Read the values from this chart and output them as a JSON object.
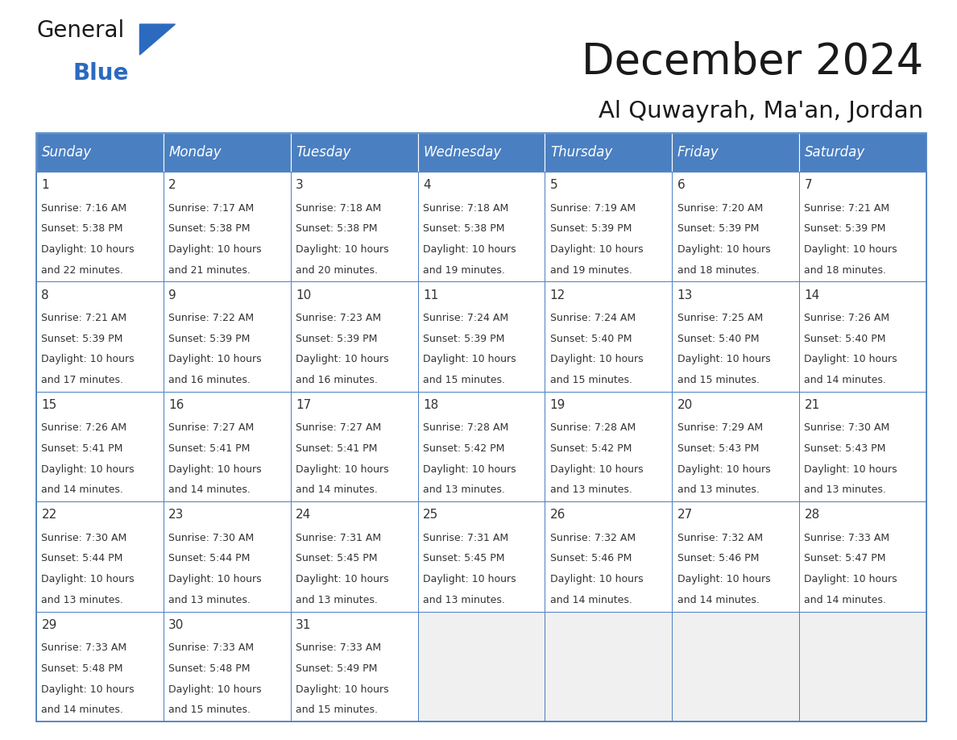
{
  "title": "December 2024",
  "subtitle": "Al Quwayrah, Ma'an, Jordan",
  "header_bg": "#4a7fc1",
  "header_text_color": "#ffffff",
  "row_border_color": "#4a7fc1",
  "cell_border_color": "#cccccc",
  "day_number_color": "#333333",
  "cell_text_color": "#333333",
  "bg_color": "#ffffff",
  "last_row_bg": "#f0f0f0",
  "days_of_week": [
    "Sunday",
    "Monday",
    "Tuesday",
    "Wednesday",
    "Thursday",
    "Friday",
    "Saturday"
  ],
  "calendar_data": [
    [
      {
        "day": 1,
        "sunrise": "7:16 AM",
        "sunset": "5:38 PM",
        "daylight": "10 hours and 22 minutes."
      },
      {
        "day": 2,
        "sunrise": "7:17 AM",
        "sunset": "5:38 PM",
        "daylight": "10 hours and 21 minutes."
      },
      {
        "day": 3,
        "sunrise": "7:18 AM",
        "sunset": "5:38 PM",
        "daylight": "10 hours and 20 minutes."
      },
      {
        "day": 4,
        "sunrise": "7:18 AM",
        "sunset": "5:38 PM",
        "daylight": "10 hours and 19 minutes."
      },
      {
        "day": 5,
        "sunrise": "7:19 AM",
        "sunset": "5:39 PM",
        "daylight": "10 hours and 19 minutes."
      },
      {
        "day": 6,
        "sunrise": "7:20 AM",
        "sunset": "5:39 PM",
        "daylight": "10 hours and 18 minutes."
      },
      {
        "day": 7,
        "sunrise": "7:21 AM",
        "sunset": "5:39 PM",
        "daylight": "10 hours and 18 minutes."
      }
    ],
    [
      {
        "day": 8,
        "sunrise": "7:21 AM",
        "sunset": "5:39 PM",
        "daylight": "10 hours and 17 minutes."
      },
      {
        "day": 9,
        "sunrise": "7:22 AM",
        "sunset": "5:39 PM",
        "daylight": "10 hours and 16 minutes."
      },
      {
        "day": 10,
        "sunrise": "7:23 AM",
        "sunset": "5:39 PM",
        "daylight": "10 hours and 16 minutes."
      },
      {
        "day": 11,
        "sunrise": "7:24 AM",
        "sunset": "5:39 PM",
        "daylight": "10 hours and 15 minutes."
      },
      {
        "day": 12,
        "sunrise": "7:24 AM",
        "sunset": "5:40 PM",
        "daylight": "10 hours and 15 minutes."
      },
      {
        "day": 13,
        "sunrise": "7:25 AM",
        "sunset": "5:40 PM",
        "daylight": "10 hours and 15 minutes."
      },
      {
        "day": 14,
        "sunrise": "7:26 AM",
        "sunset": "5:40 PM",
        "daylight": "10 hours and 14 minutes."
      }
    ],
    [
      {
        "day": 15,
        "sunrise": "7:26 AM",
        "sunset": "5:41 PM",
        "daylight": "10 hours and 14 minutes."
      },
      {
        "day": 16,
        "sunrise": "7:27 AM",
        "sunset": "5:41 PM",
        "daylight": "10 hours and 14 minutes."
      },
      {
        "day": 17,
        "sunrise": "7:27 AM",
        "sunset": "5:41 PM",
        "daylight": "10 hours and 14 minutes."
      },
      {
        "day": 18,
        "sunrise": "7:28 AM",
        "sunset": "5:42 PM",
        "daylight": "10 hours and 13 minutes."
      },
      {
        "day": 19,
        "sunrise": "7:28 AM",
        "sunset": "5:42 PM",
        "daylight": "10 hours and 13 minutes."
      },
      {
        "day": 20,
        "sunrise": "7:29 AM",
        "sunset": "5:43 PM",
        "daylight": "10 hours and 13 minutes."
      },
      {
        "day": 21,
        "sunrise": "7:30 AM",
        "sunset": "5:43 PM",
        "daylight": "10 hours and 13 minutes."
      }
    ],
    [
      {
        "day": 22,
        "sunrise": "7:30 AM",
        "sunset": "5:44 PM",
        "daylight": "10 hours and 13 minutes."
      },
      {
        "day": 23,
        "sunrise": "7:30 AM",
        "sunset": "5:44 PM",
        "daylight": "10 hours and 13 minutes."
      },
      {
        "day": 24,
        "sunrise": "7:31 AM",
        "sunset": "5:45 PM",
        "daylight": "10 hours and 13 minutes."
      },
      {
        "day": 25,
        "sunrise": "7:31 AM",
        "sunset": "5:45 PM",
        "daylight": "10 hours and 13 minutes."
      },
      {
        "day": 26,
        "sunrise": "7:32 AM",
        "sunset": "5:46 PM",
        "daylight": "10 hours and 14 minutes."
      },
      {
        "day": 27,
        "sunrise": "7:32 AM",
        "sunset": "5:46 PM",
        "daylight": "10 hours and 14 minutes."
      },
      {
        "day": 28,
        "sunrise": "7:33 AM",
        "sunset": "5:47 PM",
        "daylight": "10 hours and 14 minutes."
      }
    ],
    [
      {
        "day": 29,
        "sunrise": "7:33 AM",
        "sunset": "5:48 PM",
        "daylight": "10 hours and 14 minutes."
      },
      {
        "day": 30,
        "sunrise": "7:33 AM",
        "sunset": "5:48 PM",
        "daylight": "10 hours and 15 minutes."
      },
      {
        "day": 31,
        "sunrise": "7:33 AM",
        "sunset": "5:49 PM",
        "daylight": "10 hours and 15 minutes."
      },
      null,
      null,
      null,
      null
    ]
  ],
  "title_fontsize": 38,
  "subtitle_fontsize": 21,
  "header_fontsize": 12,
  "day_num_fontsize": 11,
  "cell_text_fontsize": 9,
  "logo_general_color": "#1a1a1a",
  "logo_blue_color": "#2b6abf"
}
